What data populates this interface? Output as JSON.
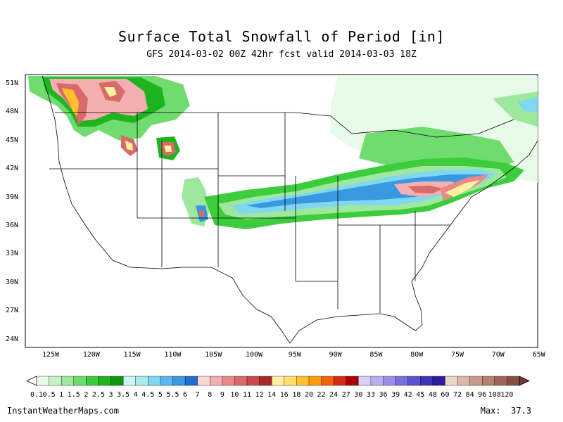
{
  "title": "Surface Total Snowfall of Period [in]",
  "subtitle": "GFS 2014-03-02 00Z 42hr fcst valid 2014-03-03 18Z",
  "lat_labels": [
    "51N",
    "48N",
    "45N",
    "42N",
    "39N",
    "36N",
    "33N",
    "30N",
    "27N",
    "24N"
  ],
  "lon_labels": [
    "125W",
    "120W",
    "115W",
    "110W",
    "105W",
    "100W",
    "95W",
    "90W",
    "85W",
    "80W",
    "75W",
    "70W",
    "65W"
  ],
  "colorbar": {
    "labels": [
      "0.1",
      "0.5",
      "1",
      "1.5",
      "2",
      "2.5",
      "3",
      "3.5",
      "4",
      "4.5",
      "5",
      "5.5",
      "6",
      "7",
      "8",
      "9",
      "10",
      "11",
      "12",
      "14",
      "16",
      "18",
      "20",
      "22",
      "24",
      "27",
      "30",
      "33",
      "36",
      "39",
      "42",
      "45",
      "48",
      "60",
      "72",
      "84",
      "96",
      "108",
      "120"
    ],
    "colors": [
      "#e8fbe8",
      "#c6f2c6",
      "#9ee89e",
      "#6edc6e",
      "#3ccc3c",
      "#1fb41f",
      "#0e960e",
      "#ccf5f5",
      "#a8ecf0",
      "#7fd8f0",
      "#5ab8ec",
      "#3a98e0",
      "#1e6fd0",
      "#f8d6d6",
      "#f4b0b0",
      "#e88a8a",
      "#d86a6a",
      "#c84a4a",
      "#a82828",
      "#fff2a0",
      "#ffdf6a",
      "#ffc030",
      "#ff9a10",
      "#f26010",
      "#d82a10",
      "#a80000",
      "#d8d0f8",
      "#b8aef0",
      "#9a8ee8",
      "#7c6ee0",
      "#5e50d0",
      "#4032b8",
      "#2a1c9c",
      "#ecd8c8",
      "#dcb8a8",
      "#c89c8c",
      "#b48070",
      "#a06458",
      "#845044"
    ]
  },
  "credit": "InstantWeatherMaps.com",
  "max_label": "Max:",
  "max_value": "37.3"
}
